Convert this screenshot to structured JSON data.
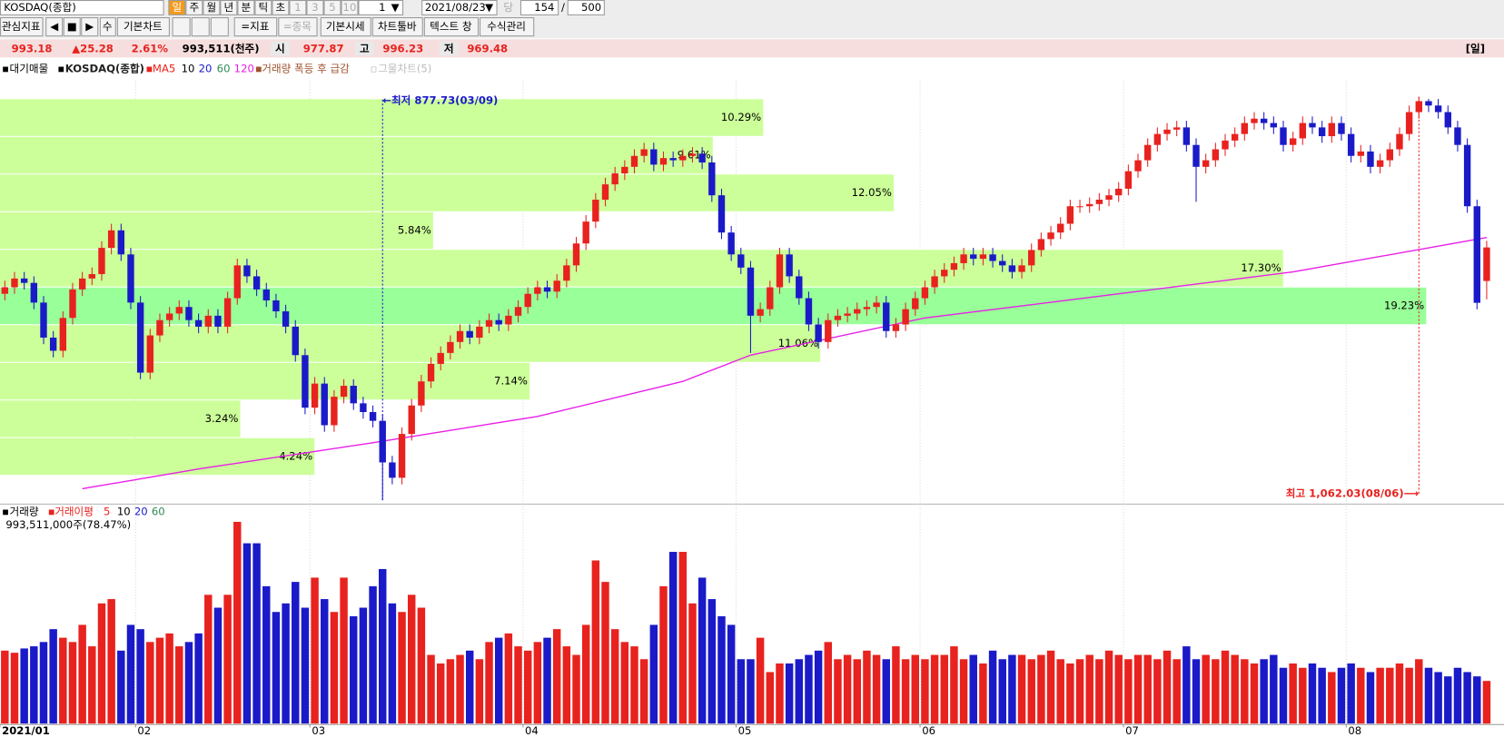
{
  "toolbar": {
    "symbol": "KOSDAQ(종합)",
    "periods": [
      "일",
      "주",
      "월",
      "년",
      "분",
      "틱",
      "초"
    ],
    "intervals": [
      "1",
      "3",
      "5",
      "10"
    ],
    "unit": "1",
    "date": "2021/08/23",
    "current_label": "당",
    "count": "154",
    "separator": "/",
    "max": "500",
    "buttons": [
      "관심지표",
      "수",
      "기본차트",
      "=지표",
      "=종목",
      "기본시세",
      "차트툴바",
      "텍스트 창",
      "수식관리"
    ]
  },
  "quote": {
    "price": "993.18",
    "change": "▲25.28",
    "rate": "2.61%",
    "volume": "993,511(천주)",
    "open_label": "시",
    "open": "977.87",
    "high_label": "고",
    "high": "996.23",
    "low_label": "저",
    "low": "969.48",
    "period": "[일]"
  },
  "legend": {
    "profile": "대기매물",
    "symbol": "KOSDAQ(종합)",
    "ma_label": "MA",
    "ma_periods": [
      "5",
      "10",
      "20",
      "60"
    ],
    "signal": "거래량 폭등 후 급감",
    "net": "그물차트(5)",
    "volume": "거래량",
    "volume_ma": "거래이평",
    "volume_ma_periods": [
      "5",
      "10",
      "20",
      "60"
    ],
    "volume_info": "993,511,000주(78.47%)"
  },
  "chart_data": {
    "type": "candlestick",
    "categories": [
      "2021/01",
      null,
      null,
      null,
      null,
      null,
      null,
      null,
      null,
      null,
      null,
      null,
      null,
      null,
      "02",
      null,
      null,
      null,
      null,
      null,
      null,
      null,
      null,
      null,
      null,
      null,
      null,
      null,
      null,
      null,
      null,
      null,
      "03",
      null,
      null,
      null,
      null,
      null,
      null,
      null,
      null,
      null,
      null,
      null,
      null,
      null,
      null,
      null,
      null,
      null,
      null,
      null,
      null,
      null,
      "04",
      null,
      null,
      null,
      null,
      null,
      null,
      null,
      null,
      null,
      null,
      null,
      null,
      null,
      null,
      null,
      null,
      null,
      null,
      null,
      null,
      null,
      "05",
      null,
      null,
      null,
      null,
      null,
      null,
      null,
      null,
      null,
      null,
      null,
      null,
      null,
      null,
      null,
      null,
      null,
      null,
      "06",
      null,
      null,
      null,
      null,
      null,
      null,
      null,
      null,
      null,
      null,
      null,
      null,
      null,
      null,
      null,
      null,
      null,
      null,
      null,
      null,
      "07",
      null,
      null,
      null,
      null,
      null,
      null,
      null,
      null,
      null,
      null,
      null,
      null,
      null,
      null,
      null,
      null,
      null,
      null,
      null,
      null,
      null,
      null,
      "08",
      null,
      null,
      null,
      null,
      null,
      null,
      null,
      null,
      null,
      null,
      null,
      null,
      null,
      null
    ],
    "open": [
      972,
      975,
      979,
      977,
      968,
      952,
      946,
      961,
      974,
      979,
      981,
      993,
      1001,
      990,
      968,
      936,
      953,
      960,
      963,
      966,
      960,
      957,
      962,
      957,
      970,
      985,
      980,
      974,
      969,
      964,
      957,
      944,
      920,
      931,
      912,
      925,
      930,
      922,
      918,
      914,
      895,
      888,
      908,
      921,
      932,
      940,
      945,
      950,
      955,
      952,
      957,
      960,
      958,
      962,
      966,
      972,
      975,
      973,
      978,
      985,
      995,
      1005,
      1015,
      1022,
      1027,
      1030,
      1035,
      1038,
      1031,
      1034,
      1033,
      1035,
      1036,
      1032,
      1017,
      1000,
      990,
      984,
      962,
      965,
      975,
      990,
      980,
      970,
      958,
      950,
      960,
      962,
      963,
      965,
      966,
      968,
      955,
      958,
      965,
      970,
      975,
      980,
      983,
      986,
      990,
      988,
      990,
      987,
      985,
      982,
      985,
      992,
      997,
      1000,
      1004,
      1012,
      1012,
      1013,
      1015,
      1017,
      1020,
      1028,
      1033,
      1040,
      1045,
      1047,
      1048,
      1040,
      1030,
      1033,
      1038,
      1042,
      1045,
      1050,
      1052,
      1050,
      1048,
      1040,
      1043,
      1050,
      1048,
      1044,
      1050,
      1045,
      1035,
      1037,
      1030,
      1033,
      1038,
      1045,
      1055,
      1060,
      1058,
      1055,
      1048,
      1040,
      1012,
      977.87
    ],
    "high": [
      978,
      982,
      982,
      980,
      971,
      955,
      964,
      977,
      982,
      984,
      996,
      1004,
      1004,
      993,
      971,
      956,
      963,
      966,
      969,
      969,
      963,
      965,
      965,
      973,
      988,
      988,
      983,
      977,
      972,
      967,
      960,
      947,
      934,
      934,
      928,
      933,
      933,
      925,
      921,
      917,
      898,
      911,
      924,
      935,
      943,
      948,
      953,
      958,
      958,
      960,
      963,
      963,
      965,
      969,
      975,
      978,
      978,
      981,
      988,
      998,
      1008,
      1018,
      1025,
      1030,
      1033,
      1038,
      1041,
      1041,
      1037,
      1037,
      1038,
      1039,
      1039,
      1035,
      1020,
      1003,
      993,
      987,
      968,
      978,
      993,
      993,
      983,
      973,
      961,
      963,
      965,
      966,
      968,
      969,
      971,
      971,
      961,
      968,
      973,
      978,
      983,
      986,
      989,
      993,
      993,
      993,
      993,
      990,
      988,
      988,
      995,
      1000,
      1003,
      1007,
      1015,
      1015,
      1016,
      1018,
      1020,
      1023,
      1031,
      1036,
      1043,
      1048,
      1050,
      1051,
      1051,
      1043,
      1036,
      1041,
      1045,
      1048,
      1053,
      1055,
      1055,
      1053,
      1051,
      1046,
      1053,
      1053,
      1051,
      1053,
      1053,
      1048,
      1040,
      1040,
      1036,
      1041,
      1048,
      1058,
      1062.03,
      1061,
      1061,
      1058,
      1051,
      1043,
      1015,
      996.23
    ],
    "low": [
      969,
      972,
      974,
      965,
      949,
      943,
      943,
      958,
      971,
      976,
      978,
      990,
      987,
      965,
      933,
      933,
      950,
      957,
      960,
      957,
      954,
      954,
      954,
      954,
      967,
      977,
      971,
      966,
      961,
      954,
      941,
      917,
      917,
      909,
      909,
      922,
      919,
      915,
      911,
      877.73,
      885,
      885,
      905,
      918,
      929,
      937,
      942,
      947,
      949,
      949,
      954,
      955,
      955,
      959,
      963,
      969,
      970,
      970,
      975,
      982,
      992,
      1002,
      1012,
      1019,
      1024,
      1027,
      1032,
      1028,
      1028,
      1030,
      1030,
      1032,
      1029,
      1014,
      997,
      987,
      981,
      945,
      959,
      962,
      972,
      977,
      967,
      955,
      947,
      947,
      957,
      959,
      960,
      962,
      963,
      952,
      952,
      955,
      962,
      967,
      972,
      977,
      980,
      983,
      985,
      985,
      984,
      982,
      979,
      979,
      982,
      989,
      994,
      997,
      1001,
      1009,
      1009,
      1010,
      1012,
      1014,
      1017,
      1025,
      1030,
      1037,
      1042,
      1044,
      1037,
      1014,
      1027,
      1030,
      1035,
      1039,
      1042,
      1047,
      1047,
      1045,
      1037,
      1037,
      1040,
      1045,
      1041,
      1041,
      1042,
      1032,
      1032,
      1027,
      1027,
      1030,
      1035,
      1042,
      1052,
      1055,
      1052,
      1045,
      1037,
      1009,
      964.9,
      969.48
    ],
    "close": [
      975,
      979,
      977,
      968,
      952,
      946,
      961,
      974,
      979,
      981,
      993,
      1001,
      990,
      968,
      936,
      953,
      960,
      963,
      966,
      960,
      957,
      962,
      957,
      970,
      985,
      980,
      974,
      969,
      964,
      957,
      944,
      920,
      931,
      912,
      925,
      930,
      922,
      918,
      914,
      895,
      888,
      908,
      921,
      932,
      940,
      945,
      950,
      955,
      952,
      957,
      960,
      958,
      962,
      966,
      972,
      975,
      973,
      978,
      985,
      995,
      1005,
      1015,
      1022,
      1027,
      1030,
      1035,
      1038,
      1031,
      1034,
      1033,
      1035,
      1036,
      1032,
      1017,
      1000,
      990,
      984,
      962,
      965,
      975,
      990,
      980,
      970,
      958,
      950,
      960,
      962,
      963,
      965,
      966,
      968,
      955,
      958,
      965,
      970,
      975,
      980,
      983,
      986,
      990,
      988,
      990,
      987,
      985,
      982,
      985,
      992,
      997,
      1000,
      1004,
      1012,
      1012,
      1013,
      1015,
      1017,
      1020,
      1028,
      1033,
      1040,
      1045,
      1047,
      1048,
      1040,
      1030,
      1033,
      1038,
      1042,
      1045,
      1050,
      1052,
      1050,
      1048,
      1040,
      1043,
      1050,
      1048,
      1044,
      1050,
      1045,
      1035,
      1037,
      1030,
      1033,
      1038,
      1045,
      1055,
      1060,
      1058,
      1055,
      1048,
      1040,
      1012,
      967.9,
      993.18
    ],
    "up_color": "#e8221e",
    "down_color": "#1a1ac8",
    "ylim": [
      876.4,
      1066.8
    ],
    "series": [
      {
        "name": "120",
        "color": "#e81ee8",
        "x": [
          8,
          20,
          38,
          55,
          70,
          77,
          95,
          115,
          133,
          153
        ],
        "values": [
          883,
          892,
          904,
          916,
          932,
          944,
          961,
          972,
          982,
          997.7
        ]
      }
    ],
    "ma_colors": [
      "#e8221e",
      "#000000",
      "#1a1ac8",
      "#2e8b57"
    ],
    "profile": {
      "edges": [
        889.1,
        906.3,
        923.5,
        940.7,
        957.9,
        975.1,
        992.3,
        1009.5,
        1026.7,
        1043.9,
        1061.1
      ],
      "values": [
        4.24,
        3.24,
        7.14,
        11.06,
        19.23,
        17.3,
        5.84,
        12.05,
        9.61,
        10.29
      ],
      "value_labels": [
        "4.24%",
        "3.24%",
        "7.14%",
        "11.06%",
        "19.23%",
        "17.30%",
        "5.84%",
        "12.05%",
        "9.61%",
        "10.29%"
      ],
      "xlim": [
        0,
        20.24
      ],
      "color": "#ccff99",
      "max_color": "#99ff99"
    },
    "annotations": [
      {
        "text": "←최저 877.73(03/09)",
        "index": 39,
        "color": "#1a1ac8"
      },
      {
        "text": "최고 1,062.03(08/06)⟶",
        "index": 146,
        "color": "#e8221e"
      }
    ],
    "volume": {
      "values": [
        1700,
        1650,
        1750,
        1800,
        1900,
        2200,
        2000,
        1900,
        2300,
        1800,
        2800,
        2900,
        1700,
        2300,
        2200,
        1900,
        2000,
        2100,
        1800,
        1900,
        2100,
        3000,
        2700,
        3000,
        4700,
        4200,
        4200,
        3200,
        2600,
        2800,
        3300,
        2700,
        3400,
        2900,
        2600,
        3400,
        2500,
        2700,
        3200,
        3600,
        2800,
        2600,
        3000,
        2700,
        1600,
        1400,
        1500,
        1600,
        1700,
        1500,
        1900,
        2000,
        2100,
        1800,
        1700,
        1900,
        2000,
        2200,
        1800,
        1600,
        2300,
        3800,
        3300,
        2200,
        1900,
        1800,
        1500,
        2300,
        3200,
        4000,
        4000,
        2800,
        3400,
        2900,
        2500,
        2300,
        1500,
        1500,
        2000,
        1200,
        1400,
        1400,
        1500,
        1600,
        1700,
        1900,
        1500,
        1600,
        1500,
        1700,
        1600,
        1500,
        1800,
        1500,
        1600,
        1500,
        1600,
        1600,
        1800,
        1500,
        1600,
        1400,
        1700,
        1500,
        1600,
        1600,
        1500,
        1600,
        1700,
        1500,
        1400,
        1500,
        1600,
        1500,
        1700,
        1600,
        1500,
        1600,
        1600,
        1500,
        1700,
        1500,
        1800,
        1500,
        1600,
        1500,
        1700,
        1600,
        1500,
        1400,
        1500,
        1600,
        1300,
        1400,
        1300,
        1400,
        1300,
        1200,
        1300,
        1400,
        1300,
        1200,
        1300,
        1300,
        1400,
        1300,
        1500,
        1300,
        1200,
        1100,
        1300,
        1200,
        1100,
        993.511
      ],
      "ylim": [
        0,
        4800
      ]
    }
  }
}
